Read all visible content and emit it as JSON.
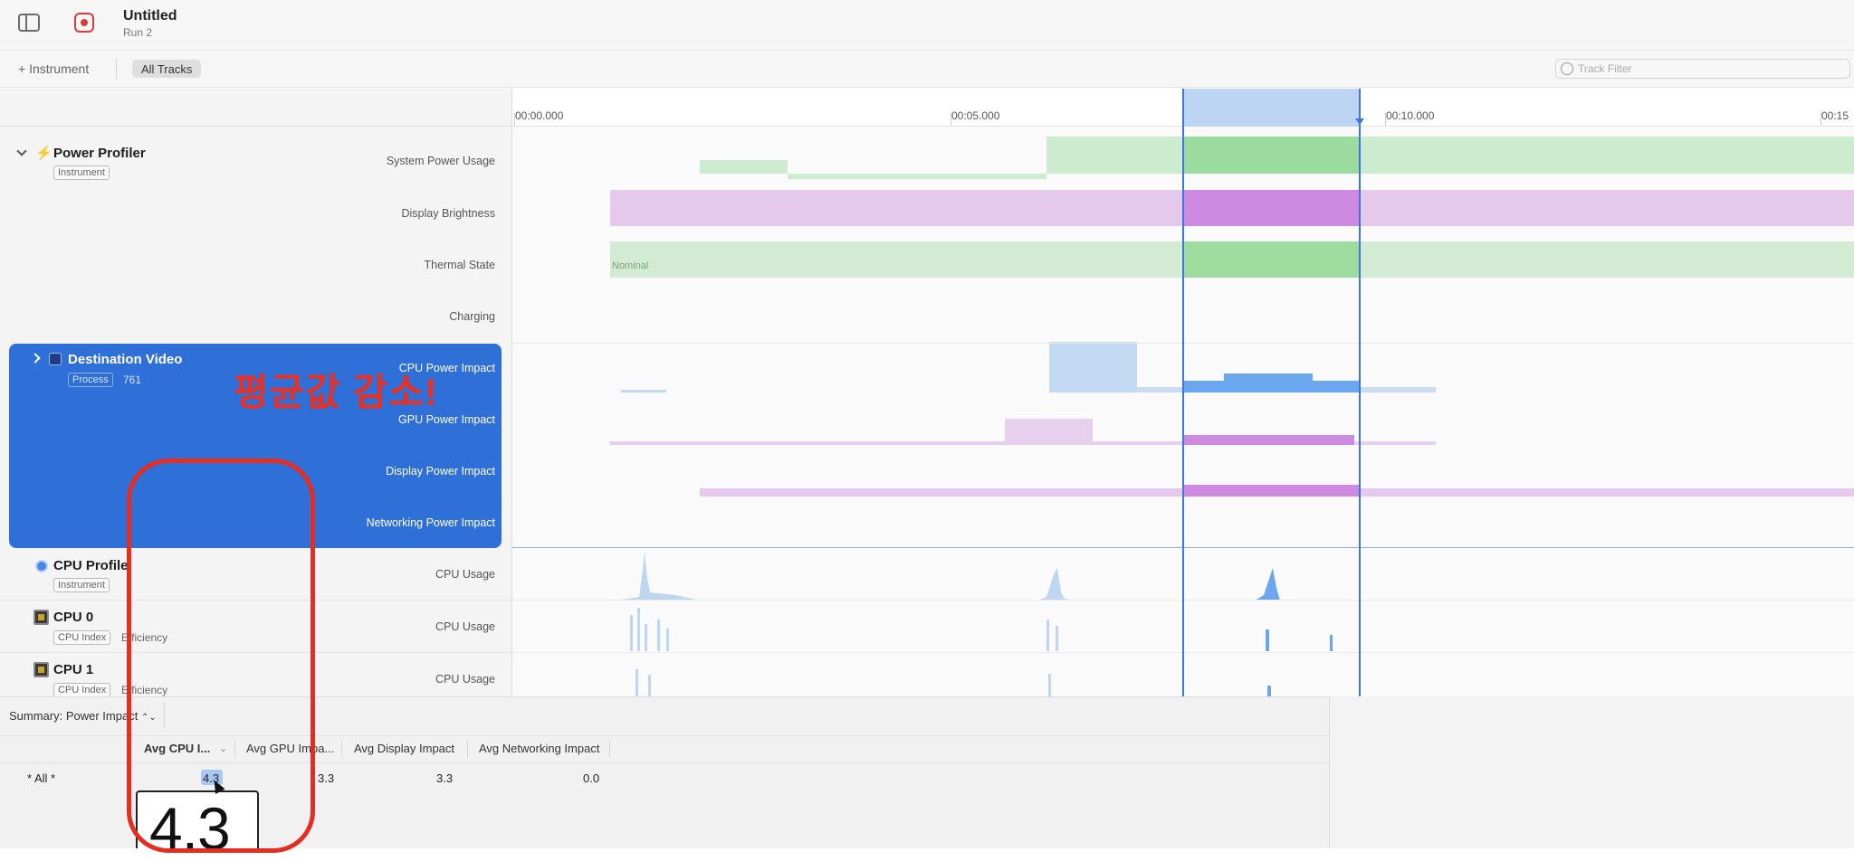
{
  "window": {
    "title": "Untitled",
    "subtitle": "Run 2"
  },
  "toolbar": {
    "add_instrument_label": "+ Instrument",
    "all_tracks_label": "All Tracks",
    "track_filter_placeholder": "Track Filter"
  },
  "ruler": {
    "labels": [
      "00:00.000",
      "00:05.000",
      "00:10.000",
      "00:15"
    ]
  },
  "instruments": [
    {
      "name": "Power Profiler",
      "tag": "Instrument",
      "icon": "bolt-icon",
      "tracks": [
        "System Power Usage",
        "Display Brightness",
        "Thermal State",
        "Charging"
      ],
      "thermal_state_value": "Nominal"
    },
    {
      "name": "Destination Video",
      "tag": "Process",
      "pid": "761",
      "icon": "app-icon",
      "tracks": [
        "CPU Power Impact",
        "GPU Power Impact",
        "Display Power Impact",
        "Networking Power Impact"
      ]
    },
    {
      "name": "CPU Profile",
      "tag": "Instrument",
      "icon": "cpu-profiler-icon",
      "tracks": [
        "CPU Usage"
      ]
    },
    {
      "name": "CPU 0",
      "tag": "CPU Index",
      "meta": "Efficiency",
      "icon": "cpu-icon",
      "tracks": [
        "CPU Usage"
      ]
    },
    {
      "name": "CPU 1",
      "tag": "CPU Index",
      "meta": "Efficiency",
      "icon": "cpu-icon",
      "tracks": [
        "CPU Usage"
      ]
    }
  ],
  "summary": {
    "selector_label": "Summary: Power Impact",
    "columns": [
      "Avg CPU I...",
      "Avg GPU Impa...",
      "Avg Display Impact",
      "Avg Networking Impact"
    ],
    "rows": [
      {
        "label": "* All *",
        "values": [
          "4.3",
          "3.3",
          "3.3",
          "0.0"
        ]
      }
    ],
    "tooltip_value": "4.3"
  },
  "annotation": {
    "text": "평균값 감소!",
    "color": "#ea2f23"
  },
  "colors": {
    "selection_blue": "#2f6fd8",
    "power_green": "#9bdb9f",
    "brightness_purple": "#cd8ae0",
    "cpu_blue": "#6aa7ee"
  }
}
